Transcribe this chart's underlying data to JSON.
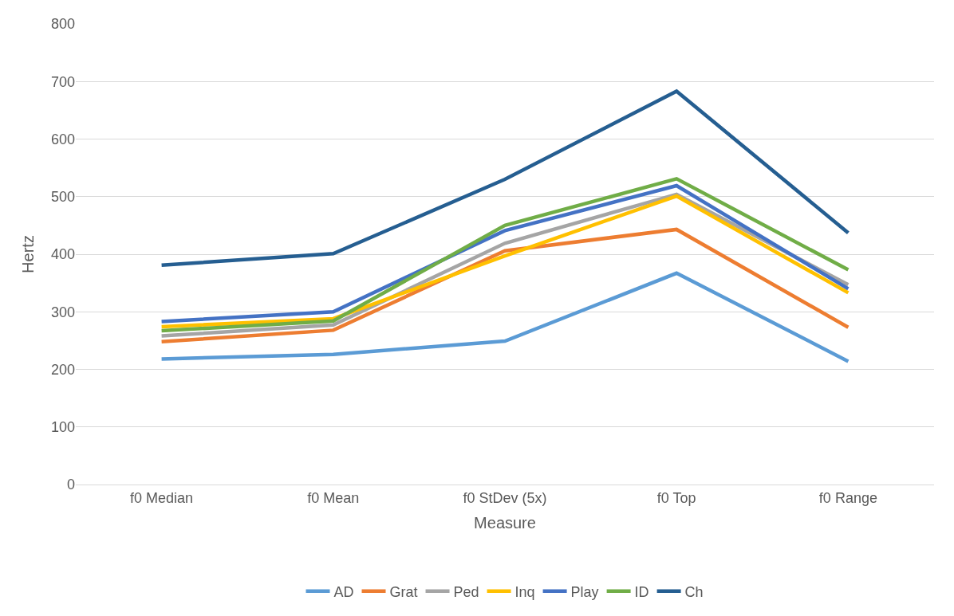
{
  "chart_data": {
    "type": "line",
    "xlabel": "Measure",
    "ylabel": "Hertz",
    "categories": [
      "f0 Median",
      "f0 Mean",
      "f0 StDev (5x)",
      "f0 Top",
      "f0 Range"
    ],
    "series": [
      {
        "name": "AD",
        "color": "#5b9bd5",
        "values": [
          218,
          226,
          249,
          367,
          214
        ]
      },
      {
        "name": "Grat",
        "color": "#ed7d31",
        "values": [
          248,
          268,
          406,
          443,
          273
        ]
      },
      {
        "name": "Ped",
        "color": "#a5a5a5",
        "values": [
          258,
          277,
          419,
          504,
          347
        ]
      },
      {
        "name": "Inq",
        "color": "#ffc000",
        "values": [
          274,
          288,
          397,
          501,
          333
        ]
      },
      {
        "name": "Play",
        "color": "#4472c4",
        "values": [
          283,
          300,
          441,
          519,
          340
        ]
      },
      {
        "name": "ID",
        "color": "#70ad47",
        "values": [
          267,
          284,
          450,
          531,
          373
        ]
      },
      {
        "name": "Ch",
        "color": "#255e91",
        "values": [
          381,
          401,
          530,
          683,
          437
        ]
      }
    ],
    "ylim": [
      0,
      800
    ],
    "yticks": [
      0,
      100,
      200,
      300,
      400,
      500,
      600,
      700,
      800
    ],
    "grid": "y",
    "legend": "bottom",
    "marker": "none",
    "line_style": "solid"
  }
}
